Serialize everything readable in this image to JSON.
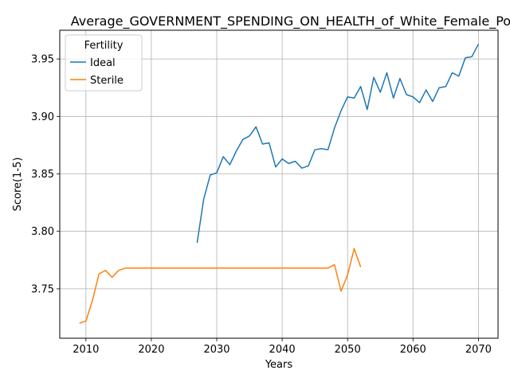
{
  "chart_data": {
    "type": "line",
    "title": "Average_GOVERNMENT_SPENDING_ON_HEALTH_of_White_Female_Pop",
    "xlabel": "Years",
    "ylabel": "Score(1-5)",
    "xlim": [
      2006,
      2073
    ],
    "ylim": [
      3.707,
      3.975
    ],
    "xticks": [
      2010,
      2020,
      2030,
      2040,
      2050,
      2060,
      2070
    ],
    "yticks": [
      3.75,
      3.8,
      3.85,
      3.9,
      3.95
    ],
    "ytick_labels": [
      "3.75",
      "3.80",
      "3.85",
      "3.90",
      "3.95"
    ],
    "grid": true,
    "legend": {
      "title": "Fertility",
      "placement": "top-left"
    },
    "series": [
      {
        "name": "Ideal",
        "color": "#1f77b4",
        "x": [
          2027,
          2028,
          2029,
          2030,
          2031,
          2032,
          2033,
          2034,
          2035,
          2036,
          2037,
          2038,
          2039,
          2040,
          2041,
          2042,
          2043,
          2044,
          2045,
          2046,
          2047,
          2048,
          2049,
          2050,
          2051,
          2052,
          2053,
          2054,
          2055,
          2056,
          2057,
          2058,
          2059,
          2060,
          2061,
          2062,
          2063,
          2064,
          2065,
          2066,
          2067,
          2068,
          2069,
          2070
        ],
        "y": [
          3.79,
          3.828,
          3.849,
          3.851,
          3.865,
          3.858,
          3.87,
          3.88,
          3.883,
          3.891,
          3.876,
          3.877,
          3.856,
          3.863,
          3.859,
          3.861,
          3.855,
          3.857,
          3.871,
          3.872,
          3.871,
          3.89,
          3.905,
          3.917,
          3.916,
          3.926,
          3.906,
          3.934,
          3.921,
          3.938,
          3.916,
          3.933,
          3.919,
          3.917,
          3.912,
          3.923,
          3.913,
          3.925,
          3.926,
          3.938,
          3.935,
          3.951,
          3.952,
          3.963
        ]
      },
      {
        "name": "Sterile",
        "color": "#ff7f0e",
        "x": [
          2009,
          2010,
          2011,
          2012,
          2013,
          2014,
          2015,
          2016,
          2017,
          2018,
          2019,
          2020,
          2021,
          2022,
          2023,
          2024,
          2025,
          2026,
          2027,
          2028,
          2029,
          2030,
          2031,
          2032,
          2033,
          2034,
          2035,
          2036,
          2037,
          2038,
          2039,
          2040,
          2041,
          2042,
          2043,
          2044,
          2045,
          2046,
          2047,
          2048,
          2049,
          2050,
          2051,
          2052
        ],
        "y": [
          3.72,
          3.722,
          3.74,
          3.763,
          3.766,
          3.76,
          3.766,
          3.768,
          3.768,
          3.768,
          3.768,
          3.768,
          3.768,
          3.768,
          3.768,
          3.768,
          3.768,
          3.768,
          3.768,
          3.768,
          3.768,
          3.768,
          3.768,
          3.768,
          3.768,
          3.768,
          3.768,
          3.768,
          3.768,
          3.768,
          3.768,
          3.768,
          3.768,
          3.768,
          3.768,
          3.768,
          3.768,
          3.768,
          3.768,
          3.771,
          3.748,
          3.762,
          3.785,
          3.769
        ]
      }
    ]
  }
}
